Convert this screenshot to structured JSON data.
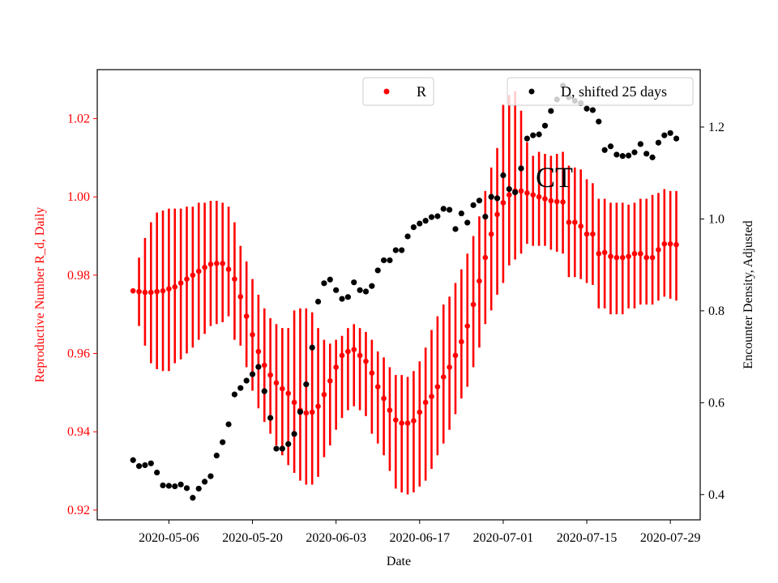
{
  "chart_data": {
    "type": "scatter",
    "title": "",
    "annotation": "CT",
    "xlabel": "Date",
    "ylabel_left": "Reproductive Number R_d, Daily",
    "ylabel_right": "Encounter Density, Adjusted",
    "x_ticks": [
      "2020-05-06",
      "2020-05-20",
      "2020-06-03",
      "2020-06-17",
      "2020-07-01",
      "2020-07-15",
      "2020-07-29"
    ],
    "y_left_ticks": [
      "0.92",
      "0.94",
      "0.96",
      "0.98",
      "1.00",
      "1.02"
    ],
    "y_right_ticks": [
      "0.4",
      "0.6",
      "0.8",
      "1.0",
      "1.2"
    ],
    "xlim": [
      "2020-04-24",
      "2020-08-03"
    ],
    "ylim_left": [
      0.9175,
      1.0325
    ],
    "ylim_right": [
      0.345,
      1.325
    ],
    "grid": false,
    "colors": {
      "R": "#ff0000",
      "D": "#000000",
      "left_axis": "#ff0000",
      "right_axis": "#000000"
    },
    "legend_R": {
      "label": "R",
      "placement": "upper-center"
    },
    "legend_D": {
      "label": "D, shifted 25 days",
      "placement": "upper-right"
    },
    "R_start_date": "2020-04-30",
    "R_values": [
      0.976,
      0.9758,
      0.9756,
      0.9756,
      0.9758,
      0.976,
      0.9765,
      0.977,
      0.978,
      0.979,
      0.98,
      0.981,
      0.982,
      0.9828,
      0.983,
      0.983,
      0.9815,
      0.979,
      0.9745,
      0.9695,
      0.9648,
      0.9605,
      0.957,
      0.9545,
      0.9525,
      0.951,
      0.9498,
      0.9475,
      0.9455,
      0.9448,
      0.945,
      0.9465,
      0.9495,
      0.953,
      0.9565,
      0.9595,
      0.9605,
      0.961,
      0.9595,
      0.958,
      0.955,
      0.9515,
      0.9485,
      0.9455,
      0.943,
      0.9422,
      0.9422,
      0.9428,
      0.945,
      0.9475,
      0.949,
      0.9515,
      0.954,
      0.9565,
      0.9595,
      0.963,
      0.967,
      0.9725,
      0.9785,
      0.9845,
      0.9905,
      0.9955,
      0.9985,
      1.0005,
      1.0015,
      1.0015,
      1.001,
      1.0005,
      1.0,
      0.9995,
      0.999,
      0.9988,
      0.9987,
      0.9935,
      0.9935,
      0.9925,
      0.9905,
      0.9905,
      0.9855,
      0.9858,
      0.9848,
      0.9845,
      0.9845,
      0.9848,
      0.9855,
      0.9855,
      0.9845,
      0.9845,
      0.9865,
      0.988,
      0.988,
      0.9878
    ],
    "R_err_low": [
      0.976,
      0.967,
      0.962,
      0.9575,
      0.956,
      0.9555,
      0.9555,
      0.9575,
      0.9585,
      0.96,
      0.9615,
      0.9635,
      0.965,
      0.967,
      0.9675,
      0.968,
      0.9695,
      0.9635,
      0.962,
      0.9565,
      0.9505,
      0.946,
      0.9425,
      0.9395,
      0.9365,
      0.934,
      0.9315,
      0.9295,
      0.9275,
      0.9265,
      0.9265,
      0.9285,
      0.9335,
      0.9365,
      0.9405,
      0.9435,
      0.9455,
      0.9465,
      0.9455,
      0.944,
      0.9395,
      0.937,
      0.934,
      0.93,
      0.9255,
      0.9245,
      0.924,
      0.9245,
      0.926,
      0.9275,
      0.9305,
      0.934,
      0.937,
      0.9405,
      0.9445,
      0.9485,
      0.9515,
      0.9565,
      0.9615,
      0.9675,
      0.971,
      0.975,
      0.978,
      0.9825,
      0.984,
      0.9855,
      0.988,
      0.9875,
      0.9875,
      0.9875,
      0.9865,
      0.986,
      0.9855,
      0.9795,
      0.9795,
      0.979,
      0.978,
      0.9775,
      0.9715,
      0.9715,
      0.97,
      0.97,
      0.97,
      0.9715,
      0.9715,
      0.9725,
      0.9725,
      0.9725,
      0.9735,
      0.9745,
      0.974,
      0.9735
    ],
    "R_err_high": [
      0.976,
      0.9845,
      0.9895,
      0.9935,
      0.996,
      0.9965,
      0.997,
      0.997,
      0.997,
      0.9975,
      0.9975,
      0.9985,
      0.9985,
      0.999,
      0.999,
      0.9985,
      0.9975,
      0.9935,
      0.9875,
      0.9835,
      0.979,
      0.975,
      0.9715,
      0.969,
      0.9675,
      0.9665,
      0.9665,
      0.971,
      0.9715,
      0.9715,
      0.9705,
      0.9665,
      0.9635,
      0.9625,
      0.9635,
      0.9645,
      0.9665,
      0.9675,
      0.9665,
      0.9655,
      0.9635,
      0.9605,
      0.959,
      0.9565,
      0.9545,
      0.9545,
      0.954,
      0.9555,
      0.958,
      0.9615,
      0.966,
      0.9695,
      0.9725,
      0.9745,
      0.978,
      0.9815,
      0.9855,
      0.99,
      0.995,
      1.0015,
      1.0075,
      1.0125,
      1.0235,
      1.026,
      1.027,
      1.022,
      1.014,
      1.0105,
      1.0115,
      1.011,
      1.0105,
      1.011,
      1.0115,
      1.008,
      1.0075,
      1.007,
      1.0045,
      1.0035,
      0.9995,
      0.9995,
      0.9985,
      0.9985,
      0.9985,
      0.998,
      0.9985,
      0.9995,
      0.9995,
      1.0005,
      1.001,
      1.002,
      1.0015,
      1.0015
    ],
    "D_start_date": "2020-04-30",
    "D_values": [
      0.475,
      0.462,
      0.464,
      0.468,
      0.448,
      0.42,
      0.419,
      0.418,
      0.422,
      0.414,
      0.393,
      0.413,
      0.428,
      0.44,
      0.485,
      0.514,
      0.553,
      0.618,
      0.632,
      0.648,
      0.662,
      0.678,
      0.625,
      0.567,
      0.5,
      0.5,
      0.51,
      0.532,
      0.58,
      0.64,
      0.72,
      0.82,
      0.86,
      0.868,
      0.845,
      0.826,
      0.83,
      0.862,
      0.845,
      0.842,
      0.854,
      0.888,
      0.91,
      0.91,
      0.932,
      0.932,
      0.962,
      0.982,
      0.99,
      0.996,
      1.004,
      1.006,
      1.022,
      1.02,
      0.978,
      1.012,
      0.992,
      1.03,
      1.04,
      1.005,
      1.048,
      1.045,
      1.095,
      1.065,
      1.058,
      1.11,
      1.175,
      1.182,
      1.184,
      1.203,
      1.235,
      1.26,
      1.29,
      1.265,
      1.257,
      1.252,
      1.24,
      1.237,
      1.212,
      1.15,
      1.158,
      1.14,
      1.137,
      1.138,
      1.145,
      1.163,
      1.142,
      1.134,
      1.166,
      1.182,
      1.187,
      1.175
    ]
  }
}
